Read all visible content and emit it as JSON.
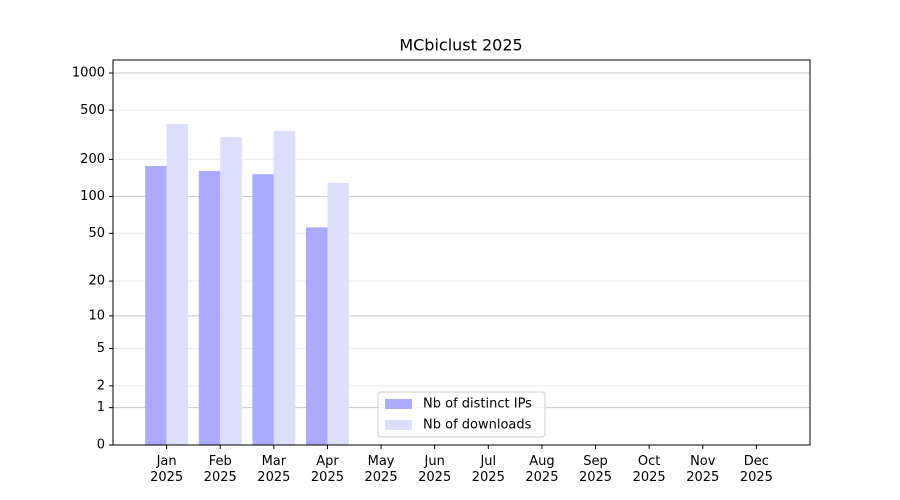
{
  "chart_data": {
    "type": "bar",
    "title": "MCbiclust 2025",
    "categories": [
      "Jan 2025",
      "Feb 2025",
      "Mar 2025",
      "Apr 2025",
      "May 2025",
      "Jun 2025",
      "Jul 2025",
      "Aug 2025",
      "Sep 2025",
      "Oct 2025",
      "Nov 2025",
      "Dec 2025"
    ],
    "series": [
      {
        "name": "Nb of distinct IPs",
        "color": "#aaaaff",
        "values": [
          177,
          161,
          152,
          56,
          0,
          0,
          0,
          0,
          0,
          0,
          0,
          0
        ]
      },
      {
        "name": "Nb of downloads",
        "color": "#ddddff",
        "values": [
          387,
          304,
          340,
          129,
          0,
          0,
          0,
          0,
          0,
          0,
          0,
          0
        ]
      }
    ],
    "yscale": "log1p",
    "ylim": [
      0,
      1273
    ],
    "yticks": [
      0,
      1,
      2,
      5,
      10,
      20,
      50,
      100,
      200,
      500,
      1000
    ],
    "grid": true,
    "legend": "lower center"
  }
}
